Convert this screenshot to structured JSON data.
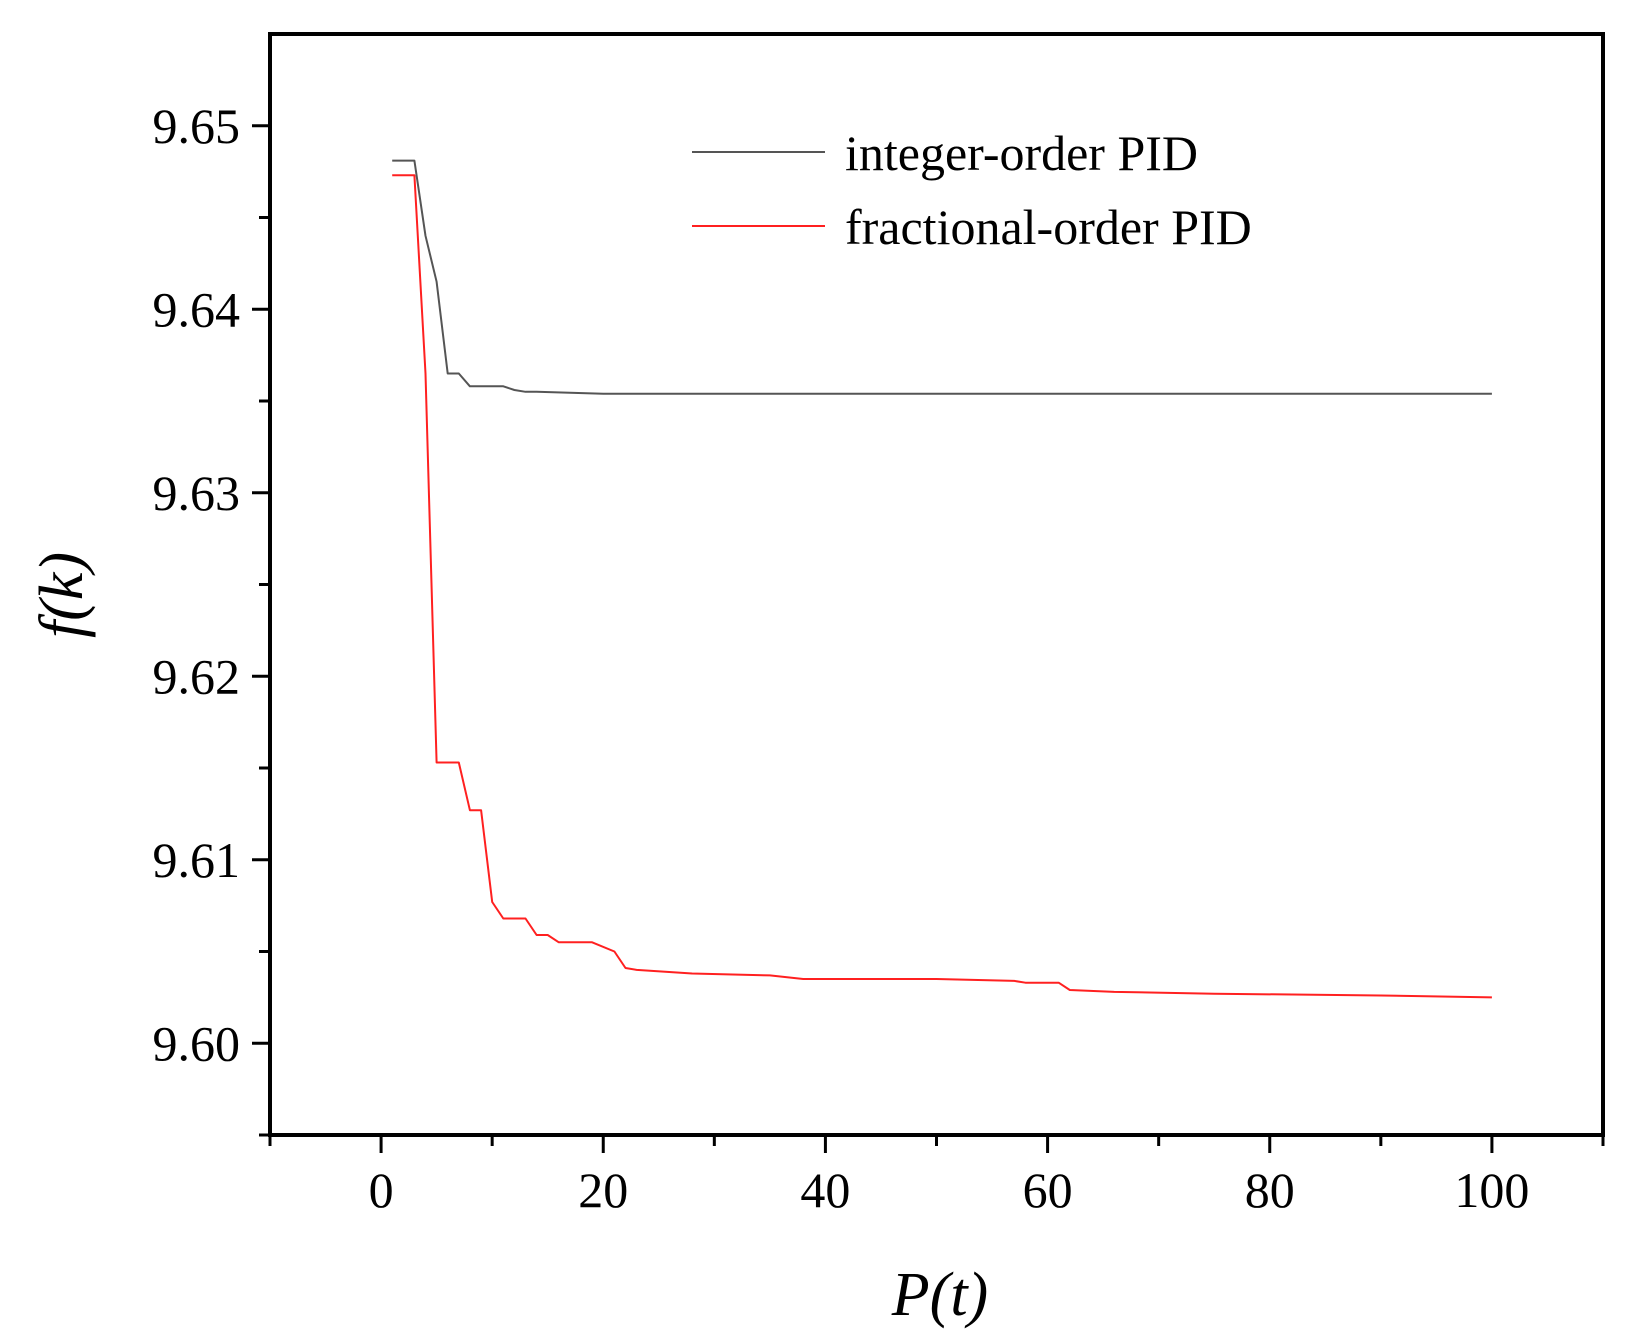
{
  "chart_data": {
    "type": "line",
    "title": "",
    "xlabel": "P(t)",
    "ylabel": "f(k)",
    "xlim": [
      -10,
      110
    ],
    "ylim": [
      9.595,
      9.655
    ],
    "xticks": [
      "0",
      "20",
      "40",
      "60",
      "80",
      "100"
    ],
    "xtick_values": [
      0,
      20,
      40,
      60,
      80,
      100
    ],
    "yticks": [
      "9.60",
      "9.61",
      "9.62",
      "9.63",
      "9.64",
      "9.65"
    ],
    "ytick_values": [
      9.6,
      9.61,
      9.62,
      9.63,
      9.64,
      9.65
    ],
    "grid": false,
    "legend": "top-right",
    "series": [
      {
        "name": "integer-order PID",
        "color": "#555555",
        "x": [
          1,
          3,
          4,
          5,
          6,
          7,
          8,
          9,
          10,
          11,
          12,
          13,
          14,
          20,
          30,
          50,
          70,
          100
        ],
        "y": [
          9.6481,
          9.6481,
          9.644,
          9.6415,
          9.6365,
          9.6365,
          9.6358,
          9.6358,
          9.6358,
          9.6358,
          9.6356,
          9.6355,
          9.6355,
          9.6354,
          9.6354,
          9.6354,
          9.6354,
          9.6354
        ]
      },
      {
        "name": "fractional-order PID",
        "color": "#ff2020",
        "x": [
          1,
          3,
          4,
          5,
          7,
          8,
          9,
          10,
          11,
          13,
          14,
          15,
          16,
          19,
          21,
          22,
          23,
          28,
          35,
          38,
          50,
          57,
          58,
          61,
          62,
          66,
          75,
          90,
          100
        ],
        "y": [
          9.6473,
          9.6473,
          9.6365,
          9.6153,
          9.6153,
          9.6127,
          9.6127,
          9.6077,
          9.6068,
          9.6068,
          9.6059,
          9.6059,
          9.6055,
          9.6055,
          9.605,
          9.6041,
          9.604,
          9.6038,
          9.6037,
          9.6035,
          9.6035,
          9.6034,
          9.6033,
          9.6033,
          9.6029,
          9.6028,
          9.6027,
          9.6026,
          9.6025
        ]
      }
    ]
  }
}
